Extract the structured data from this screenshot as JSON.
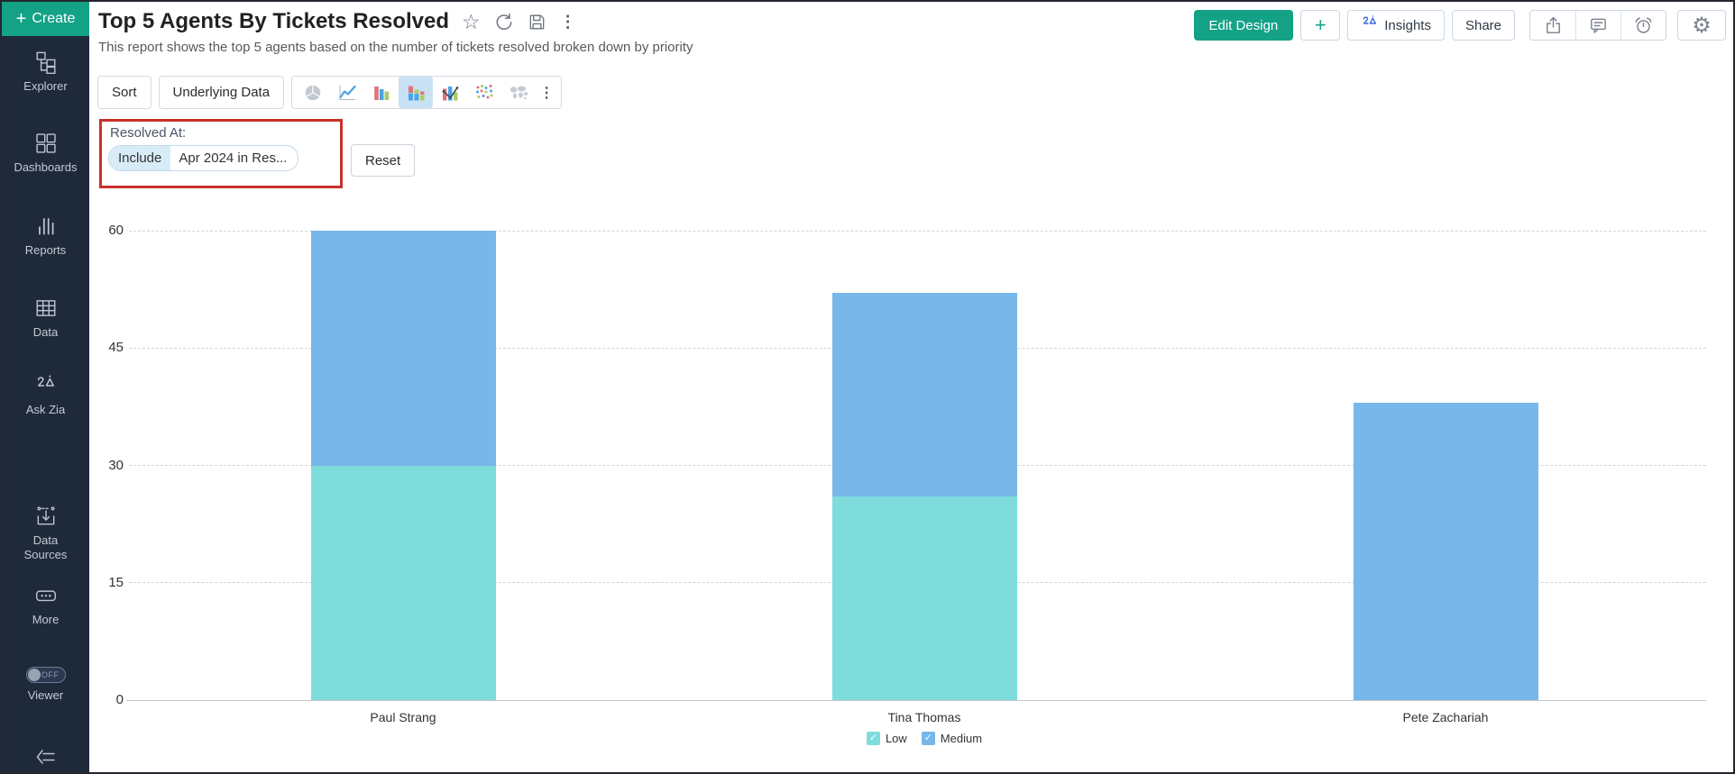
{
  "sidebar": {
    "create_label": "Create",
    "items": [
      {
        "label": "Explorer"
      },
      {
        "label": "Dashboards"
      },
      {
        "label": "Reports"
      },
      {
        "label": "Data"
      },
      {
        "label": "Ask Zia"
      },
      {
        "label": "Data Sources"
      },
      {
        "label": "More"
      }
    ],
    "viewer_label": "Viewer",
    "viewer_toggle": "OFF"
  },
  "header": {
    "title": "Top 5 Agents By Tickets Resolved",
    "subtitle": "This report shows the top 5 agents based on the number of tickets resolved broken down by priority"
  },
  "actions": {
    "edit_design": "Edit Design",
    "insights": "Insights",
    "share": "Share"
  },
  "toolbar": {
    "sort": "Sort",
    "underlying_data": "Underlying Data",
    "chart_types": [
      "pie",
      "line",
      "bar",
      "stacked-bar",
      "bar-line-combo",
      "scatter",
      "world-map"
    ],
    "selected_chart_type": "stacked-bar"
  },
  "filter": {
    "label": "Resolved At:",
    "operator": "Include",
    "value": "Apr 2024 in Res...",
    "reset_label": "Reset"
  },
  "icons": {
    "plus": "+",
    "star": "☆",
    "kebab": "⋮",
    "gear": "⚙",
    "check": "✓"
  },
  "colors": {
    "accent_green": "#14A287",
    "sidebar_bg": "#1E2A3A",
    "annotation_red": "#C8312B",
    "selected_chart_type_bg": "#C9E1F5",
    "series_low": "#7EDCDC",
    "series_medium": "#77B7EA"
  },
  "chart_data": {
    "type": "bar",
    "stacked": true,
    "title": "",
    "xlabel": "",
    "ylabel": "",
    "categories": [
      "Paul Strang",
      "Tina Thomas",
      "Pete Zachariah"
    ],
    "series": [
      {
        "name": "Low",
        "color": "#7EDCDC",
        "values": [
          30,
          26,
          0
        ]
      },
      {
        "name": "Medium",
        "color": "#77B7EA",
        "values": [
          30,
          26,
          38
        ]
      }
    ],
    "ylim": [
      0,
      60
    ],
    "yticks": [
      0,
      15,
      30,
      45,
      60
    ],
    "grid": "horizontal-dashed",
    "legend_position": "bottom"
  }
}
